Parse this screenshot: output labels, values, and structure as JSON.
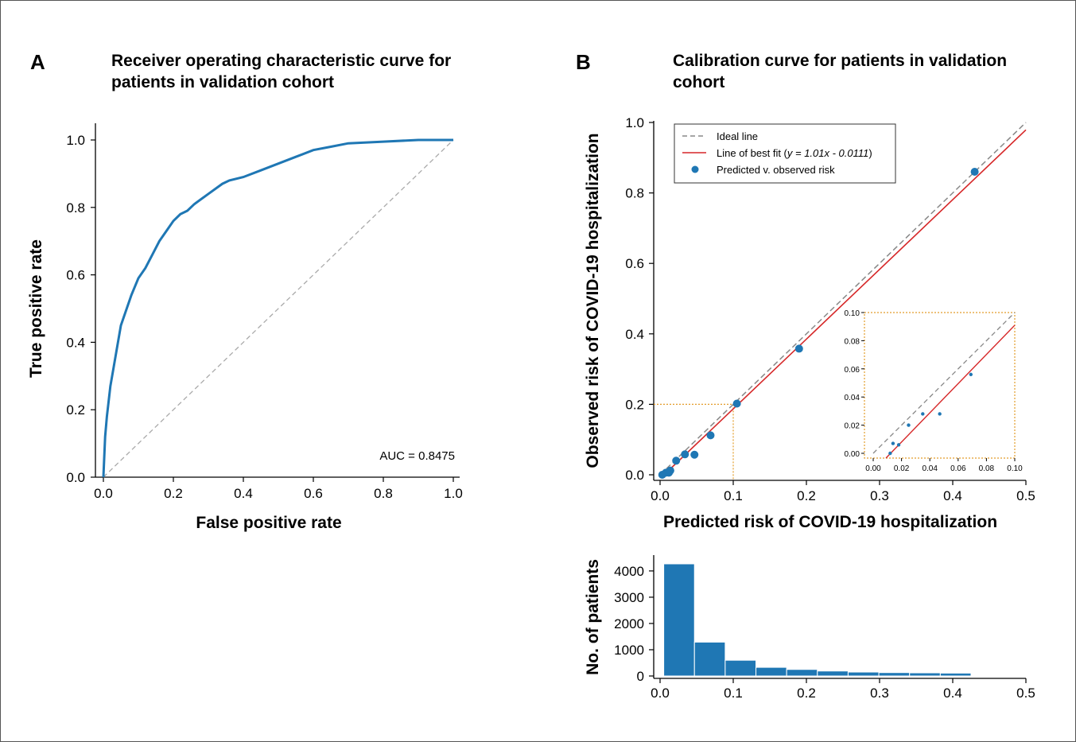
{
  "chart_data": [
    {
      "type": "line",
      "panel": "A",
      "title": "Receiver operating characteristic curve for patients in validation cohort",
      "xlabel": "False positive rate",
      "ylabel": "True positive rate",
      "xlim": [
        0,
        1
      ],
      "ylim": [
        0,
        1.05
      ],
      "xticks": [
        "0.0",
        "0.2",
        "0.4",
        "0.6",
        "0.8",
        "1.0"
      ],
      "yticks": [
        "0.0",
        "0.2",
        "0.4",
        "0.6",
        "0.8",
        "1.0"
      ],
      "annotation": "AUC = 0.8475",
      "colors": {
        "curve": "#1f77b4",
        "diagonal": "#aaaaaa"
      },
      "series": [
        {
          "x": [
            0,
            0.005,
            0.01,
            0.02,
            0.03,
            0.04,
            0.05,
            0.06,
            0.07,
            0.08,
            0.1,
            0.12,
            0.14,
            0.16,
            0.18,
            0.2,
            0.22,
            0.24,
            0.26,
            0.3,
            0.34,
            0.36,
            0.4,
            0.45,
            0.5,
            0.55,
            0.6,
            0.65,
            0.7,
            0.8,
            0.9,
            1.0
          ],
          "y": [
            0,
            0.12,
            0.18,
            0.27,
            0.33,
            0.39,
            0.45,
            0.48,
            0.51,
            0.54,
            0.59,
            0.62,
            0.66,
            0.7,
            0.73,
            0.76,
            0.78,
            0.79,
            0.81,
            0.84,
            0.87,
            0.88,
            0.89,
            0.91,
            0.93,
            0.95,
            0.97,
            0.98,
            0.99,
            0.995,
            1.0,
            1.0
          ]
        },
        {
          "x": [
            0,
            1
          ],
          "y": [
            0,
            1
          ]
        }
      ]
    },
    {
      "type": "scatter",
      "panel": "B",
      "title": "Calibration curve for patients in validation cohort",
      "xlabel": "Predicted risk of COVID-19 hospitalization",
      "ylabel": "Observed risk of COVID-19 hospitalization",
      "xlim": [
        0,
        0.5
      ],
      "ylim": [
        0,
        1.0
      ],
      "xticks": [
        "0.0",
        "0.1",
        "0.2",
        "0.3",
        "0.4",
        "0.5"
      ],
      "yticks": [
        "0.0",
        "0.2",
        "0.4",
        "0.6",
        "0.8",
        "1.0"
      ],
      "legend": {
        "placement": "top-left",
        "ideal": "Ideal line",
        "fit_prefix": "Line of best fit (",
        "fit_eq": "y = 1.01x - 0.0111",
        "fit_suffix": ")",
        "points": "Predicted v. observed risk"
      },
      "colors": {
        "points": "#1f77b4",
        "fit": "#d62728",
        "ideal": "#888888",
        "zoom": "#e39c2a"
      },
      "points": {
        "x": [
          0.003,
          0.008,
          0.012,
          0.014,
          0.022,
          0.034,
          0.047,
          0.069,
          0.105,
          0.19,
          0.43
        ],
        "y": [
          0.0,
          0.006,
          0.006,
          0.012,
          0.04,
          0.058,
          0.057,
          0.112,
          0.202,
          0.358,
          0.86
        ]
      },
      "fit_line": {
        "slope": 1.01,
        "intercept": -0.0111
      },
      "inset": {
        "xlim": [
          0,
          0.1
        ],
        "ylim": [
          0,
          0.1
        ],
        "xticks": [
          "0.00",
          "0.02",
          "0.04",
          "0.06",
          "0.08",
          "0.10"
        ],
        "yticks": [
          "0.00",
          "0.02",
          "0.04",
          "0.06",
          "0.08",
          "0.10"
        ],
        "points": {
          "x": [
            0.012,
            0.014,
            0.018,
            0.025,
            0.035,
            0.047,
            0.069
          ],
          "y": [
            0.0,
            0.007,
            0.006,
            0.02,
            0.028,
            0.028,
            0.056
          ]
        }
      }
    },
    {
      "type": "bar",
      "panel": "B-histogram",
      "xlabel": "",
      "ylabel": "No. of patients",
      "xlim": [
        0,
        0.5
      ],
      "ylim": [
        0,
        4300
      ],
      "xticks": [
        "0.0",
        "0.1",
        "0.2",
        "0.3",
        "0.4",
        "0.5"
      ],
      "yticks": [
        "0",
        "1000",
        "2000",
        "3000",
        "4000"
      ],
      "bin_edges": [
        0.005,
        0.047,
        0.089,
        0.131,
        0.173,
        0.215,
        0.257,
        0.299,
        0.341,
        0.383,
        0.425
      ],
      "values": [
        4270,
        1290,
        600,
        330,
        250,
        190,
        150,
        130,
        120,
        110
      ],
      "color": "#1f77b4"
    }
  ],
  "panels": {
    "a_letter": "A",
    "b_letter": "B",
    "a_title_line1": "Receiver operating characteristic curve for",
    "a_title_line2": "patients in validation cohort",
    "b_title_line1": "Calibration curve for patients in validation",
    "b_title_line2": "cohort"
  }
}
